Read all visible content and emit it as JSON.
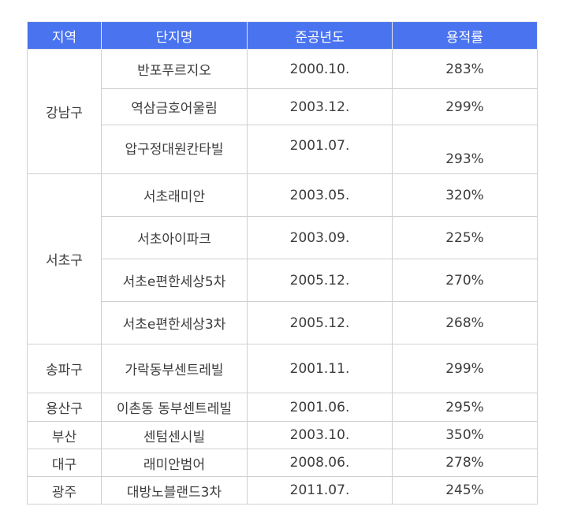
{
  "headers": {
    "region": "지역",
    "complex": "단지명",
    "year": "준공년도",
    "ratio": "용적률"
  },
  "regions": {
    "gangnam": "강남구",
    "seocho": "서초구",
    "songpa": "송파구",
    "yongsan": "용산구",
    "busan": "부산",
    "daegu": "대구",
    "gwangju": "광주"
  },
  "rows": [
    {
      "complex": "반포푸르지오",
      "year": "2000.10.",
      "ratio": "283%"
    },
    {
      "complex": "역삼금호어울림",
      "year": "2003.12.",
      "ratio": "299%"
    },
    {
      "complex": "압구정대원칸타빌",
      "year": "2001.07.",
      "ratio": "293%"
    },
    {
      "complex": "서초래미안",
      "year": "2003.05.",
      "ratio": "320%"
    },
    {
      "complex": "서초아이파크",
      "year": "2003.09.",
      "ratio": "225%"
    },
    {
      "complex": "서초e편한세상5차",
      "year": "2005.12.",
      "ratio": "270%"
    },
    {
      "complex": "서초e편한세상3차",
      "year": "2005.12.",
      "ratio": "268%"
    },
    {
      "complex": "가락동부센트레빌",
      "year": "2001.11.",
      "ratio": "299%"
    },
    {
      "complex": "이촌동 동부센트레빌",
      "year": "2001.06.",
      "ratio": "295%"
    },
    {
      "complex": "센텀센시빌",
      "year": "2003.10.",
      "ratio": "350%"
    },
    {
      "complex": "래미안범어",
      "year": "2008.06.",
      "ratio": "278%"
    },
    {
      "complex": "대방노블랜드3차",
      "year": "2011.07.",
      "ratio": "245%"
    }
  ]
}
